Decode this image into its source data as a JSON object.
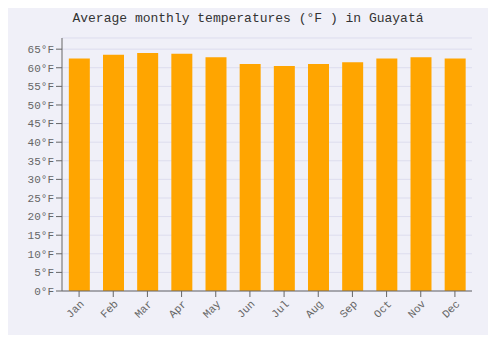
{
  "chart_data": {
    "type": "bar",
    "title": "Average monthly temperatures (°F ) in Guayatá",
    "categories": [
      "Jan",
      "Feb",
      "Mar",
      "Apr",
      "May",
      "Jun",
      "Jul",
      "Aug",
      "Sep",
      "Oct",
      "Nov",
      "Dec"
    ],
    "values": [
      62.5,
      63.5,
      64.0,
      63.8,
      62.8,
      61.0,
      60.5,
      61.0,
      61.5,
      62.5,
      62.8,
      62.5
    ],
    "color": "#FFA500",
    "ylim": [
      0,
      68
    ],
    "yticks": [
      {
        "value": 0,
        "label": "0°F"
      },
      {
        "value": 5,
        "label": "5°F"
      },
      {
        "value": 10,
        "label": "10°F"
      },
      {
        "value": 15,
        "label": "15°F"
      },
      {
        "value": 20,
        "label": "20°F"
      },
      {
        "value": 25,
        "label": "25°F"
      },
      {
        "value": 30,
        "label": "30°F"
      },
      {
        "value": 35,
        "label": "35°F"
      },
      {
        "value": 40,
        "label": "40°F"
      },
      {
        "value": 45,
        "label": "45°F"
      },
      {
        "value": 50,
        "label": "50°F"
      },
      {
        "value": 55,
        "label": "55°F"
      },
      {
        "value": 60,
        "label": "60°F"
      },
      {
        "value": 65,
        "label": "65°F"
      }
    ],
    "grid": true
  }
}
